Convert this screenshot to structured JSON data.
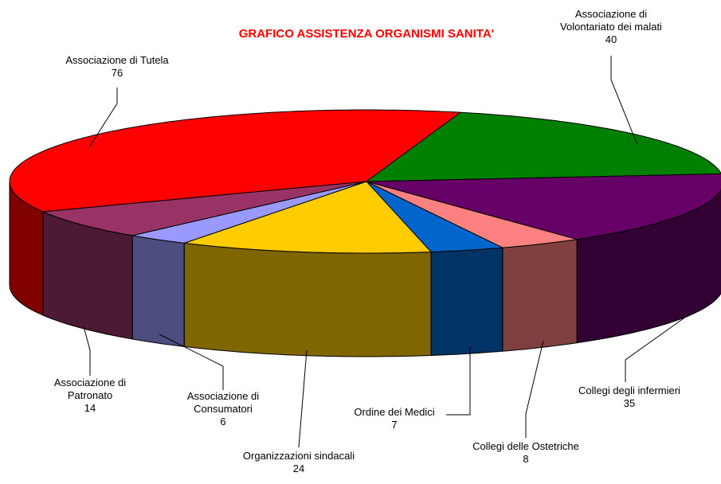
{
  "chart_data": {
    "type": "pie3d",
    "title": "GRAFICO ASSISTENZA ORGANISMI SANITA'",
    "categories": [
      "Associazione di Tutela",
      "Associazione di Volontariato dei malati",
      "Collegi degli infermieri",
      "Collegi delle Ostetriche",
      "Ordine dei Medici",
      "Organizzazioni sindacali",
      "Associazione di Consumatori",
      "Associazione di Patronato"
    ],
    "values": [
      76,
      40,
      35,
      8,
      7,
      24,
      6,
      14
    ],
    "colors": [
      "#ff0000",
      "#008000",
      "#660066",
      "#ff8080",
      "#0066cc",
      "#ffcc00",
      "#9999ff",
      "#993366"
    ]
  }
}
